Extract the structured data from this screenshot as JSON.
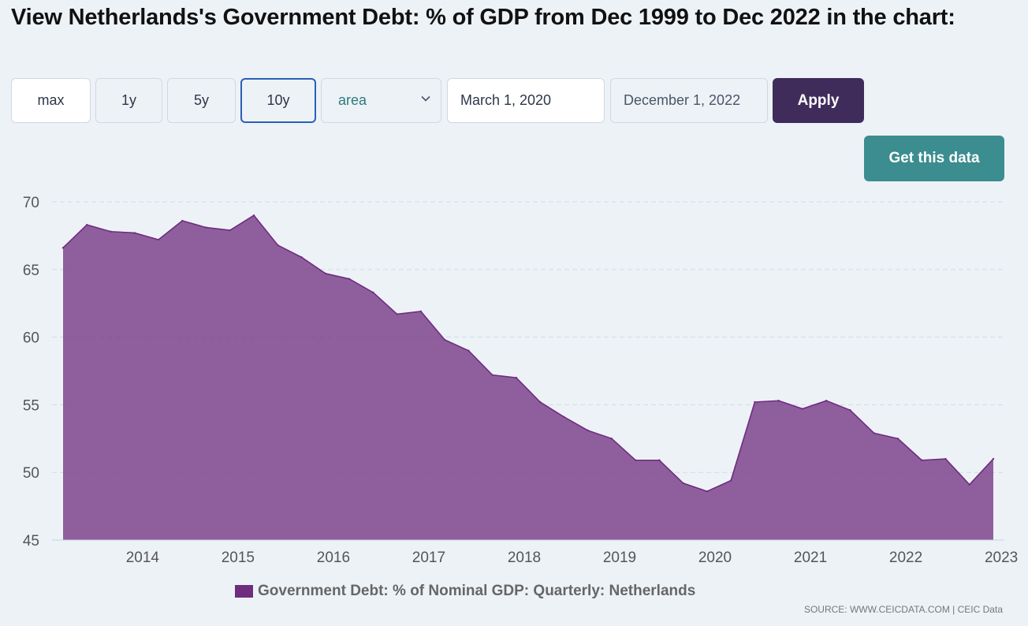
{
  "title": "View Netherlands's Government Debt: % of GDP from Dec 1999 to Dec 2022 in the chart:",
  "controls": {
    "range_buttons": [
      "max",
      "1y",
      "5y",
      "10y"
    ],
    "active_range": "10y",
    "chart_type_value": "area",
    "start_date": "March 1, 2020",
    "end_date": "December 1, 2022",
    "apply_label": "Apply",
    "get_data_label": "Get this data"
  },
  "source": "SOURCE: WWW.CEICDATA.COM | CEIC Data",
  "colors": {
    "series_fill": "#6f2d7f",
    "apply_bg": "#3f2c5b",
    "get_data_bg": "#3b8d8f",
    "active_border": "#2b5fb8"
  },
  "icons": {
    "dropdown": "chevron-down-icon"
  },
  "chart_data": {
    "type": "area",
    "ylim": [
      45,
      70
    ],
    "yticks": [
      45,
      50,
      55,
      60,
      65,
      70
    ],
    "xticks": [
      "2014",
      "2015",
      "2016",
      "2017",
      "2018",
      "2019",
      "2020",
      "2021",
      "2022",
      "2023"
    ],
    "grid": true,
    "legend_position": "bottom",
    "series": [
      {
        "name": "Government Debt: % of Nominal GDP: Quarterly: Netherlands",
        "x": [
          "2013-03",
          "2013-06",
          "2013-09",
          "2013-12",
          "2014-03",
          "2014-06",
          "2014-09",
          "2014-12",
          "2015-03",
          "2015-06",
          "2015-09",
          "2015-12",
          "2016-03",
          "2016-06",
          "2016-09",
          "2016-12",
          "2017-03",
          "2017-06",
          "2017-09",
          "2017-12",
          "2018-03",
          "2018-06",
          "2018-09",
          "2018-12",
          "2019-03",
          "2019-06",
          "2019-09",
          "2019-12",
          "2020-03",
          "2020-06",
          "2020-09",
          "2020-12",
          "2021-03",
          "2021-06",
          "2021-09",
          "2021-12",
          "2022-03",
          "2022-06",
          "2022-09",
          "2022-12"
        ],
        "values": [
          66.6,
          68.3,
          67.8,
          67.7,
          67.2,
          68.6,
          68.1,
          67.9,
          69.0,
          66.8,
          65.9,
          64.7,
          64.3,
          63.3,
          61.7,
          61.9,
          59.8,
          59.0,
          57.2,
          57.0,
          55.2,
          54.1,
          53.1,
          52.5,
          50.9,
          50.9,
          49.2,
          48.6,
          49.4,
          55.2,
          55.3,
          54.7,
          55.3,
          54.6,
          52.9,
          52.5,
          50.9,
          51.0,
          49.1,
          51.0
        ]
      }
    ]
  }
}
